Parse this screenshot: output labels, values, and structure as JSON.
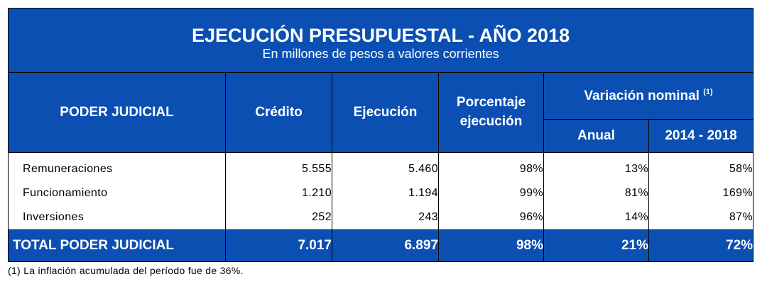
{
  "table": {
    "title": "EJECUCIÓN PRESUPUESTAL - AÑO 2018",
    "subtitle": "En millones de pesos a valores corrientes",
    "headers": {
      "poder": "PODER JUDICIAL",
      "credito": "Crédito",
      "ejecucion": "Ejecución",
      "porcentaje": "Porcentaje ejecución",
      "variacion": "Variación nominal",
      "variacion_note": "(1)",
      "anual": "Anual",
      "periodo": "2014 - 2018"
    },
    "rows": [
      {
        "label": "Remuneraciones",
        "credito": "5.555",
        "ejecucion": "5.460",
        "porcentaje": "98%",
        "anual": "13%",
        "periodo": "58%"
      },
      {
        "label": "Funcionamiento",
        "credito": "1.210",
        "ejecucion": "1.194",
        "porcentaje": "99%",
        "anual": "81%",
        "periodo": "169%"
      },
      {
        "label": "Inversiones",
        "credito": "252",
        "ejecucion": "243",
        "porcentaje": "96%",
        "anual": "14%",
        "periodo": "87%"
      }
    ],
    "total": {
      "label": "TOTAL PODER JUDICIAL",
      "credito": "7.017",
      "ejecucion": "6.897",
      "porcentaje": "98%",
      "anual": "21%",
      "periodo": "72%"
    }
  },
  "footnote": "(1) La inflación acumulada del período fue de 36%.",
  "colors": {
    "header_blue": "#0b4fb3",
    "text_white": "#ffffff"
  }
}
